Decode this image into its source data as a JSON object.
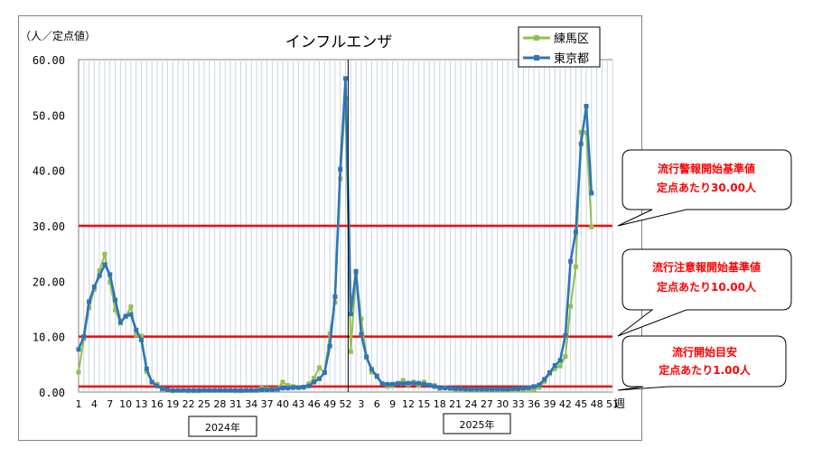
{
  "chart_data": {
    "type": "line",
    "title": "インフルエンザ",
    "ylabel": "（人／定点値）",
    "xlabel": "週",
    "ylim": [
      0,
      60
    ],
    "y_ticks": [
      "0.00",
      "10.00",
      "20.00",
      "30.00",
      "40.00",
      "50.00",
      "60.00"
    ],
    "x_ticks_2024": [
      "1",
      "4",
      "7",
      "10",
      "13",
      "16",
      "19",
      "22",
      "25",
      "28",
      "31",
      "34",
      "37",
      "40",
      "43",
      "46",
      "49",
      "52"
    ],
    "x_ticks_2025": [
      "3",
      "6",
      "9",
      "12",
      "15",
      "18",
      "21",
      "24",
      "27",
      "30",
      "33",
      "36",
      "39",
      "42",
      "45",
      "48",
      "51"
    ],
    "year_labels": [
      "2024年",
      "2025年"
    ],
    "grid": true,
    "legend_position": "top-right",
    "thresholds": [
      {
        "value": 30,
        "line1": "流行警報開始基準値",
        "line2": "定点あたり30.00人"
      },
      {
        "value": 10,
        "line1": "流行注意報開始基準値",
        "line2": "定点あたり10.00人"
      },
      {
        "value": 1,
        "line1": "流行開始目安",
        "line2": "定点あたり1.00人"
      }
    ],
    "series": [
      {
        "name": "練馬区",
        "color": "#92c050",
        "values": [
          3.6,
          9.6,
          15.2,
          18.5,
          21.9,
          24.9,
          19.8,
          14.8,
          12.4,
          13.6,
          15.4,
          10.3,
          10.1,
          3.7,
          1.8,
          1.4,
          0.5,
          0.3,
          0.2,
          0.3,
          0.3,
          0.2,
          0.2,
          0.2,
          0.3,
          0.3,
          0.3,
          0.3,
          0.3,
          0.3,
          0.2,
          0.2,
          0.3,
          0.3,
          0.3,
          0.7,
          0.6,
          0.5,
          0.6,
          1.8,
          1.2,
          1.0,
          0.8,
          0.8,
          1.5,
          2.5,
          4.4,
          3.5,
          10.5,
          16.2,
          38.5,
          53.0,
          7.3,
          21.5,
          13.2,
          6.4,
          3.6,
          3.0,
          1.5,
          1.0,
          1.1,
          1.6,
          2.1,
          1.3,
          1.8,
          1.2,
          1.8,
          1.3,
          1.2,
          0.6,
          0.8,
          0.6,
          0.5,
          0.5,
          0.3,
          0.5,
          0.4,
          0.3,
          0.4,
          0.5,
          0.4,
          0.4,
          0.3,
          0.3,
          0.4,
          0.5,
          0.4,
          0.5,
          0.8,
          1.9,
          3.3,
          4.2,
          4.7,
          6.4,
          15.5,
          22.6,
          46.9,
          46.8,
          29.8
        ]
      },
      {
        "name": "東京都",
        "color": "#2e75b6",
        "values": [
          7.7,
          10.0,
          16.3,
          19.0,
          21.0,
          23.0,
          21.2,
          16.6,
          12.6,
          13.7,
          14.0,
          11.2,
          9.4,
          4.2,
          1.8,
          1.1,
          0.6,
          0.4,
          0.3,
          0.3,
          0.3,
          0.3,
          0.3,
          0.3,
          0.3,
          0.3,
          0.3,
          0.3,
          0.3,
          0.3,
          0.3,
          0.3,
          0.3,
          0.3,
          0.3,
          0.4,
          0.4,
          0.4,
          0.5,
          0.7,
          0.7,
          0.8,
          0.8,
          0.9,
          1.1,
          1.8,
          2.4,
          3.5,
          8.3,
          17.2,
          40.2,
          56.6,
          14.1,
          21.8,
          10.4,
          6.3,
          4.1,
          2.8,
          1.5,
          1.4,
          1.4,
          1.5,
          1.5,
          1.6,
          1.6,
          1.6,
          1.4,
          1.2,
          1.0,
          0.8,
          0.7,
          0.7,
          0.6,
          0.6,
          0.5,
          0.5,
          0.5,
          0.5,
          0.5,
          0.5,
          0.5,
          0.5,
          0.5,
          0.6,
          0.6,
          0.7,
          0.8,
          1.0,
          1.3,
          2.3,
          3.5,
          4.8,
          5.7,
          10.2,
          23.6,
          28.9,
          44.8,
          51.6,
          35.9
        ]
      }
    ]
  }
}
